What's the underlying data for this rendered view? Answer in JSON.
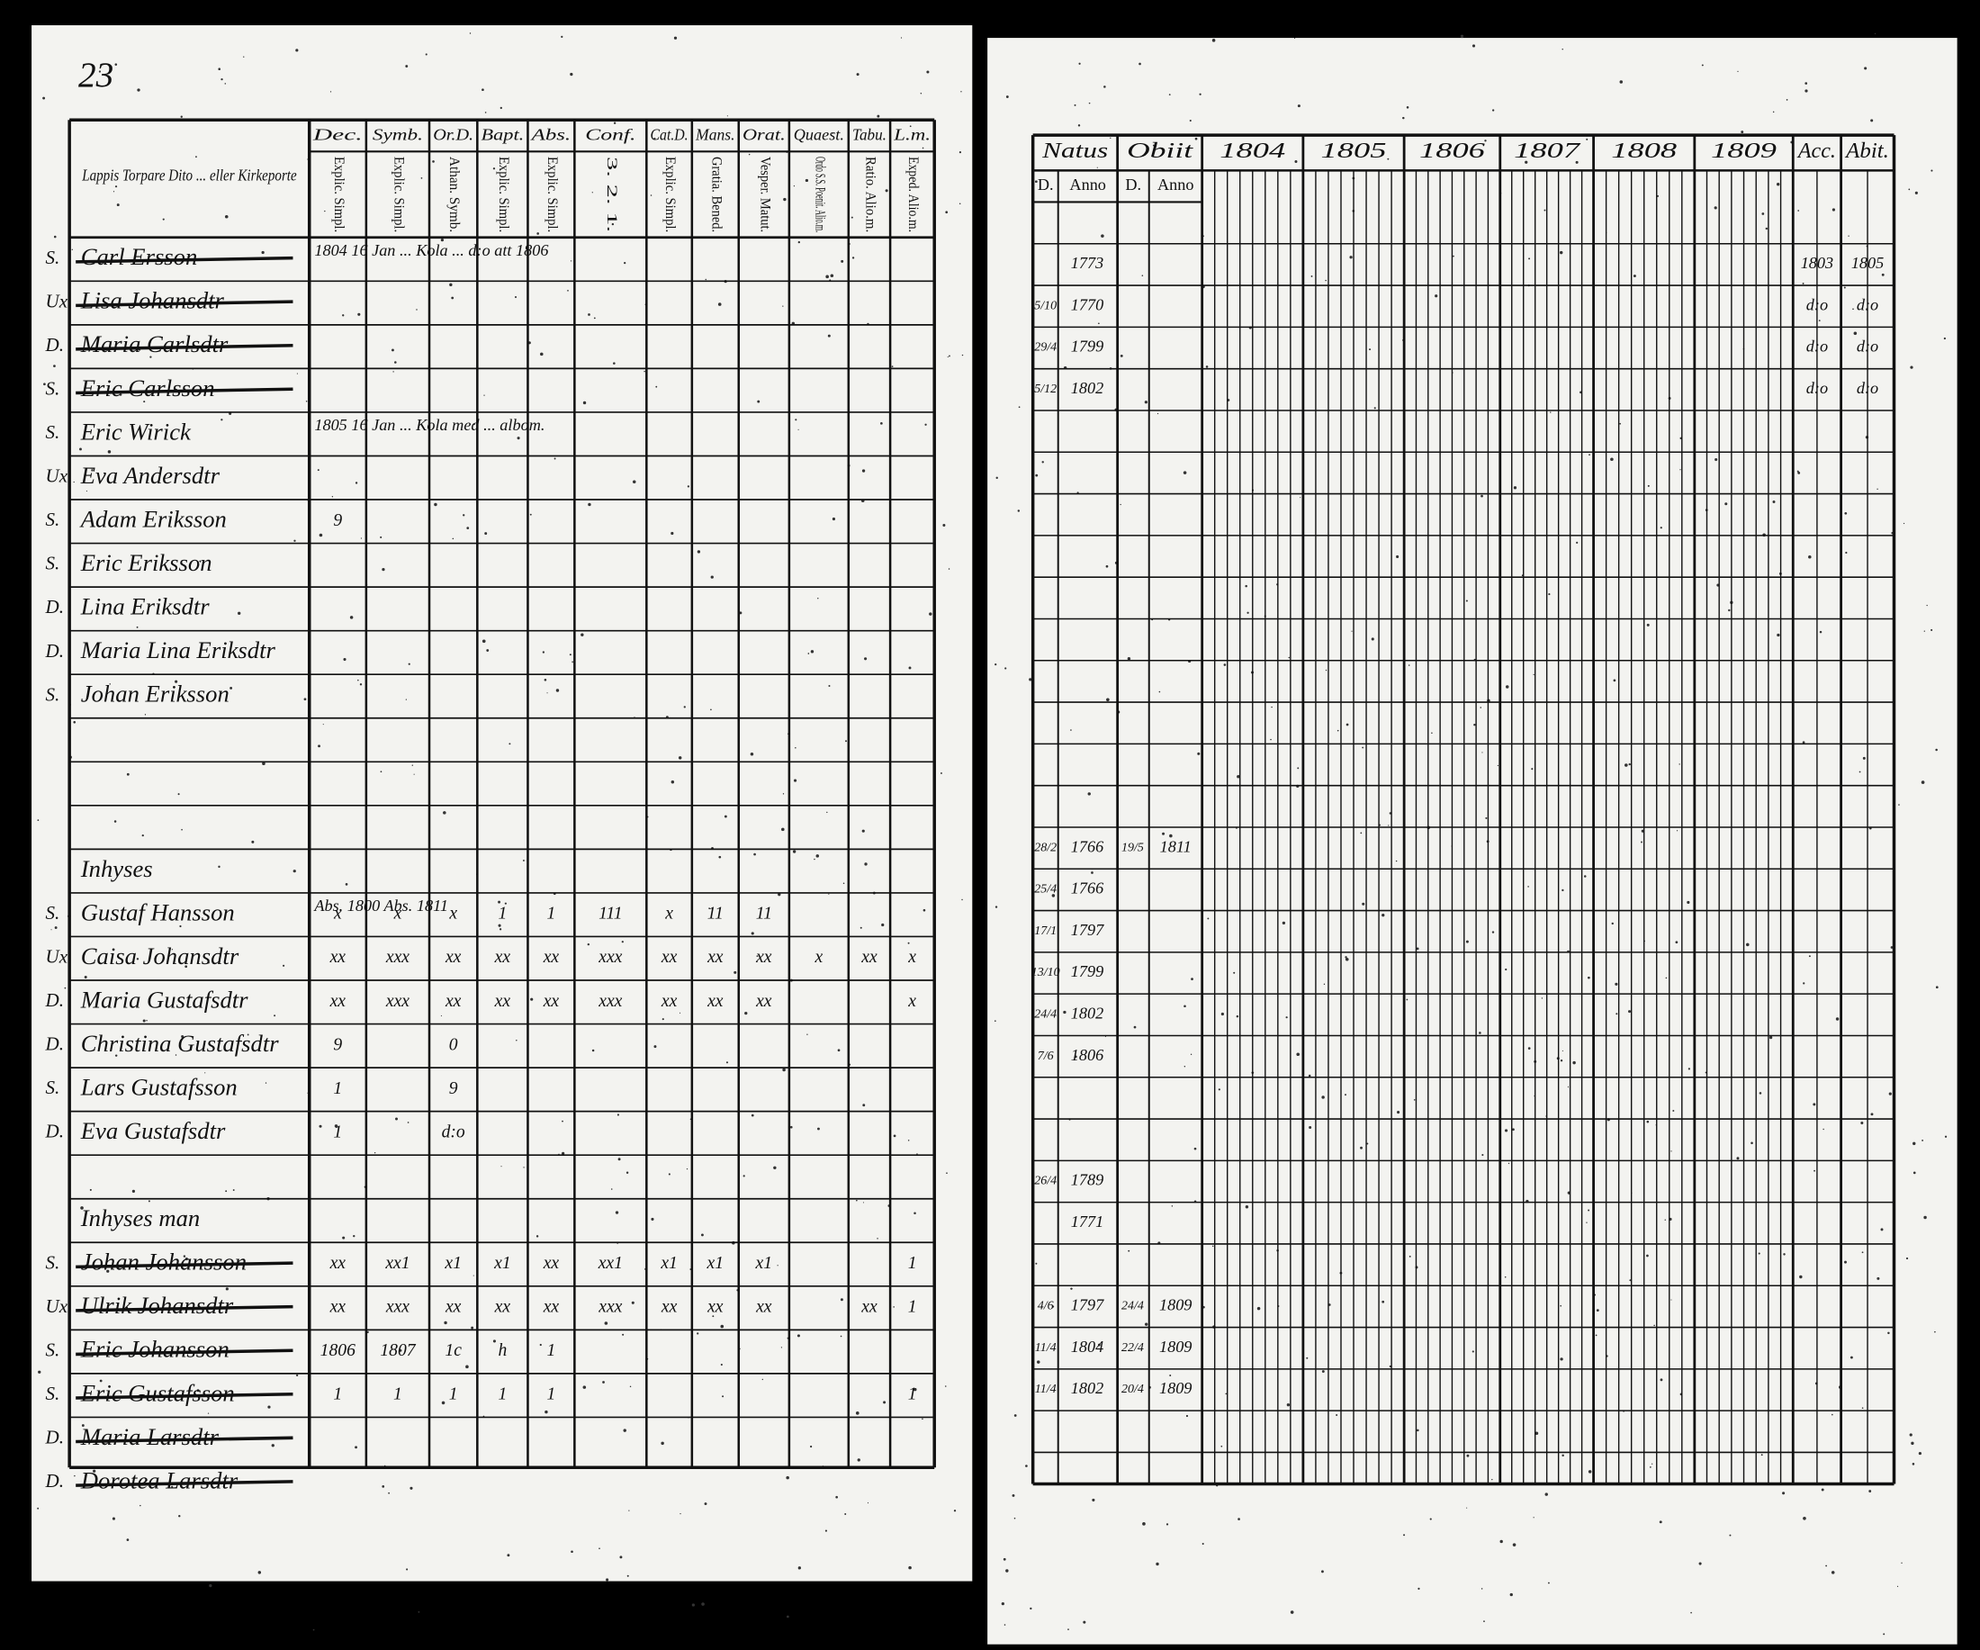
{
  "page_number": "23",
  "left_page": {
    "header_note": "Lappis Torpare Dito ... eller Kirkeporte",
    "columns": [
      {
        "title": "Dec.",
        "sub": "Explic. Simpl."
      },
      {
        "title": "Symb.",
        "sub": "Explic. Simpl."
      },
      {
        "title": "Or.D.",
        "sub": "Athan. Symb."
      },
      {
        "title": "Bapt.",
        "sub": "Explic. Simpl."
      },
      {
        "title": "Abs.",
        "sub": "Explic. Simpl."
      },
      {
        "title": "Conf.",
        "sub": "3. 2. 1."
      },
      {
        "title": "Cat.D.",
        "sub": "Explic. Simpl."
      },
      {
        "title": "Mans.",
        "sub": "Gratia. Bened."
      },
      {
        "title": "Orat.",
        "sub": "Vesper. Matut."
      },
      {
        "title": "Quaest.",
        "sub": "Ordo S.S. Poenit. Alio.m."
      },
      {
        "title": "Tabu.",
        "sub": "Ratio. Alio.m."
      },
      {
        "title": "L.m.",
        "sub": "Exped. Alio.m."
      }
    ],
    "rows": [
      {
        "marker": "S.",
        "name": "Carl Ersson",
        "struck": true,
        "note": "1804  16 Jan ... Kola ... d:o  att 1806"
      },
      {
        "marker": "Ux.",
        "name": "Lisa Johansdtr",
        "struck": true
      },
      {
        "marker": "D.",
        "name": "Maria Carlsdtr",
        "struck": true
      },
      {
        "marker": "S.",
        "name": "Eric Carlsson",
        "struck": true
      },
      {
        "marker": "S.",
        "name": "Eric Wirick",
        "note": "1805  16 Jan ... Kola med ... albom."
      },
      {
        "marker": "Ux.",
        "name": "Eva Andersdtr"
      },
      {
        "marker": "S.",
        "name": "Adam Eriksson",
        "marks": [
          "9",
          null,
          null,
          null,
          null,
          null,
          null,
          null,
          null,
          null,
          null,
          null
        ]
      },
      {
        "marker": "S.",
        "name": "Eric Eriksson"
      },
      {
        "marker": "D.",
        "name": "Lina Eriksdtr"
      },
      {
        "marker": "D.",
        "name": "Maria Lina Eriksdtr"
      },
      {
        "marker": "S.",
        "name": "Johan Eriksson"
      },
      null,
      null,
      null,
      {
        "name": "Inhyses"
      },
      {
        "marker": "S.",
        "name": "Gustaf Hansson",
        "note": "Abs. 1800  Abs. 1811",
        "marks": [
          "x",
          "x",
          "x",
          "1",
          "1",
          "111",
          "x",
          "11",
          "11",
          null,
          null,
          null
        ]
      },
      {
        "marker": "Ux.",
        "name": "Caisa Johansdtr",
        "marks": [
          "xx",
          "xxx",
          "xx",
          "xx",
          "xx",
          "xxx",
          "xx",
          "xx",
          "xx",
          "x",
          "xx",
          "x"
        ]
      },
      {
        "marker": "D.",
        "name": "Maria Gustafsdtr",
        "marks": [
          "xx",
          "xxx",
          "xx",
          "xx",
          "xx",
          "xxx",
          "xx",
          "xx",
          "xx",
          null,
          null,
          "x"
        ]
      },
      {
        "marker": "D.",
        "name": "Christina Gustafsdtr",
        "marks": [
          "9",
          null,
          "0",
          null,
          null,
          null,
          null,
          null,
          null,
          null,
          null,
          null
        ]
      },
      {
        "marker": "S.",
        "name": "Lars Gustafsson",
        "marks": [
          "1",
          null,
          "9",
          null,
          null,
          null,
          null,
          null,
          null,
          null,
          null,
          null
        ]
      },
      {
        "marker": "D.",
        "name": "Eva Gustafsdtr",
        "marks": [
          "1",
          null,
          "d:o",
          null,
          null,
          null,
          null,
          null,
          null,
          null,
          null,
          null
        ]
      },
      null,
      {
        "name": "Inhyses man"
      },
      {
        "marker": "S.",
        "name": "Johan Johansson",
        "struck": true,
        "marks": [
          "xx",
          "xx1",
          "x1",
          "x1",
          "xx",
          "xx1",
          "x1",
          "x1",
          "x1",
          null,
          null,
          "1"
        ]
      },
      {
        "marker": "Ux.",
        "name": "Ulrik Johansdtr",
        "struck": true,
        "marks": [
          "xx",
          "xxx",
          "xx",
          "xx",
          "xx",
          "xxx",
          "xx",
          "xx",
          "xx",
          null,
          "xx",
          "1"
        ]
      },
      {
        "marker": "S.",
        "name": "Eric Johansson",
        "struck": true,
        "marks": [
          "1806",
          "1807",
          "1c",
          "h",
          "1",
          null,
          null,
          null,
          null,
          null,
          null,
          null
        ]
      },
      {
        "marker": "S.",
        "name": "Eric Gustafsson",
        "struck": true,
        "marks": [
          "1",
          "1",
          "1",
          "1",
          "1",
          null,
          null,
          null,
          null,
          null,
          null,
          "1"
        ]
      },
      {
        "marker": "D.",
        "name": "Maria Larsdtr",
        "struck": true
      },
      {
        "marker": "D.",
        "name": "Dorotea Larsdtr",
        "struck": true
      }
    ]
  },
  "right_page": {
    "columns": [
      "Natus",
      "Obiit",
      "1804",
      "1805",
      "1806",
      "1807",
      "1808",
      "1809",
      "Acc.",
      "Abit."
    ],
    "sub_columns": [
      "D.",
      "Anno",
      "D.",
      "Anno"
    ],
    "rows": [
      null,
      {
        "anno": "1773",
        "acc": "1803",
        "abit": "1805"
      },
      {
        "d": "5/10",
        "anno": "1770",
        "acc": "d:o",
        "abit": "d:o"
      },
      {
        "d": "29/4",
        "anno": "1799",
        "acc": "d:o",
        "abit": "d:o"
      },
      {
        "d": "5/12",
        "anno": "1802",
        "acc": "d:o",
        "abit": "d:o"
      },
      null,
      null,
      null,
      null,
      null,
      null,
      null,
      null,
      null,
      null,
      {
        "d": "28/2",
        "anno": "1766",
        "obiit_d": "19/5",
        "obiit_anno": "1811"
      },
      {
        "d": "25/4",
        "anno": "1766"
      },
      {
        "d": "17/1",
        "anno": "1797"
      },
      {
        "d": "13/10",
        "anno": "1799"
      },
      {
        "d": "24/4",
        "anno": "1802"
      },
      {
        "d": "7/6",
        "anno": "1806"
      },
      null,
      null,
      {
        "d": "26/4",
        "anno": "1789"
      },
      {
        "anno": "1771"
      },
      null,
      {
        "d": "4/6",
        "anno": "1797",
        "obiit_d": "24/4",
        "obiit_anno": "1809"
      },
      {
        "d": "11/4",
        "anno": "1804",
        "obiit_d": "22/4",
        "obiit_anno": "1809"
      },
      {
        "d": "11/4",
        "anno": "1802",
        "obiit_d": "20/4",
        "obiit_anno": "1809"
      }
    ]
  }
}
